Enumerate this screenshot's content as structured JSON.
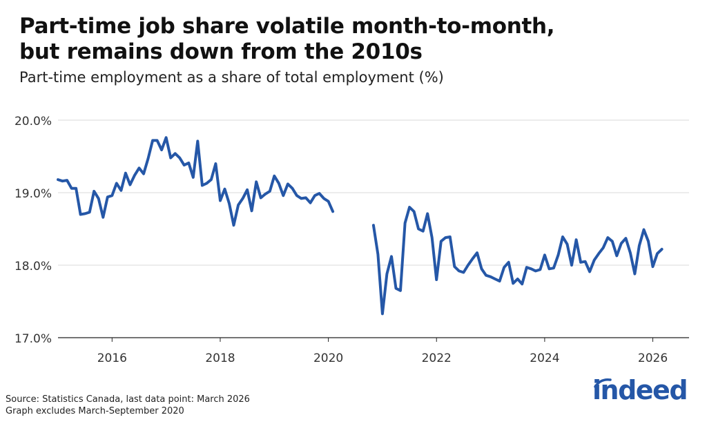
{
  "header": {
    "title_line1": "Part-time job share volatile month-to-month,",
    "title_line2": "but remains down from the 2010s",
    "subtitle": "Part-time employment as a share of total employment (%)"
  },
  "footer": {
    "source": "Source: Statistics Canada, last data point: March 2026",
    "note": "Graph excludes March-September 2020",
    "logo_text": "indeed"
  },
  "colors": {
    "line": "#2557a7",
    "grid": "#d9d9d9",
    "logo": "#2557a7"
  },
  "chart_data": {
    "type": "line",
    "x_unit": "year (decimal)",
    "xlim": [
      2015.0,
      2026.67
    ],
    "ylim": [
      17.0,
      20.0
    ],
    "y_ticks": [
      17.0,
      18.0,
      19.0,
      20.0
    ],
    "y_tick_labels": [
      "17.0%",
      "18.0%",
      "19.0%",
      "20.0%"
    ],
    "x_ticks": [
      2016,
      2018,
      2020,
      2022,
      2024,
      2026
    ],
    "x_tick_labels": [
      "2016",
      "2018",
      "2020",
      "2022",
      "2024",
      "2026"
    ],
    "grid": true,
    "legend": "none",
    "series": [
      {
        "segments": [
          {
            "start": 2015.0,
            "step": 0.0833333,
            "values": [
              19.18,
              19.16,
              19.17,
              19.06,
              19.06,
              18.7,
              18.71,
              18.73,
              19.02,
              18.92,
              18.66,
              18.94,
              18.96,
              19.13,
              19.03,
              19.27,
              19.11,
              19.24,
              19.34,
              19.26,
              19.47,
              19.72,
              19.72,
              19.59,
              19.76,
              19.48,
              19.54,
              19.48,
              19.38,
              19.41,
              19.21,
              19.71,
              19.1,
              19.13,
              19.18,
              19.4,
              18.89,
              19.05,
              18.85,
              18.55,
              18.83,
              18.92,
              19.04,
              18.75,
              19.15,
              18.93,
              18.98,
              19.02,
              19.23,
              19.13,
              18.96,
              19.12,
              19.06,
              18.96,
              18.92,
              18.93,
              18.86,
              18.96,
              18.99,
              18.92,
              18.88,
              18.74
            ]
          },
          {
            "start": 2020.8333,
            "step": 0.0833333,
            "values": [
              18.55,
              18.15,
              17.33,
              17.88,
              18.12,
              17.68,
              17.65,
              18.58,
              18.8,
              18.74,
              18.5,
              18.47,
              18.71,
              18.38,
              17.8,
              18.33,
              18.38,
              18.39,
              17.98,
              17.92,
              17.9,
              18.0,
              18.09,
              18.17,
              17.95,
              17.86,
              17.84,
              17.81,
              17.78,
              17.97,
              18.04,
              17.75,
              17.81,
              17.74,
              17.97,
              17.95,
              17.92,
              17.94,
              18.14,
              17.95,
              17.96,
              18.14,
              18.39,
              18.29,
              18.0,
              18.35,
              18.04,
              18.05,
              17.91,
              18.07,
              18.16,
              18.24,
              18.38,
              18.33,
              18.13,
              18.3,
              18.37,
              18.17,
              17.88,
              18.27,
              18.49,
              18.33,
              17.98,
              18.16,
              18.22
            ]
          }
        ]
      }
    ]
  }
}
